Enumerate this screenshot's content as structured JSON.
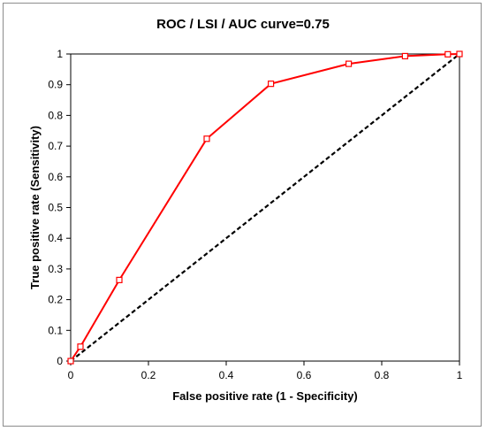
{
  "chart_data": {
    "type": "line",
    "title": "ROC / LSI / AUC curve=0.75",
    "xlabel": "False positive rate (1 - Specificity)",
    "ylabel": "True positive rate (Sensitivity)",
    "xlim": [
      0,
      1
    ],
    "ylim": [
      0,
      1
    ],
    "x_ticks": [
      "0",
      "0.2",
      "0.4",
      "0.6",
      "0.8",
      "1"
    ],
    "y_ticks": [
      "0",
      "0.1",
      "0.2",
      "0.3",
      "0.4",
      "0.5",
      "0.6",
      "0.7",
      "0.8",
      "0.9",
      "1"
    ],
    "grid": false,
    "legend": false,
    "series": [
      {
        "style": "solid",
        "color": "#ff0000",
        "marker": "square-open",
        "x": [
          0,
          0.025,
          0.125,
          0.35,
          0.515,
          0.715,
          0.86,
          0.97,
          1.0
        ],
        "y": [
          0,
          0.047,
          0.264,
          0.724,
          0.903,
          0.968,
          0.993,
          0.999,
          1.0
        ]
      },
      {
        "style": "dashed",
        "color": "#000000",
        "x": [
          0,
          1
        ],
        "y": [
          0,
          1
        ]
      }
    ]
  }
}
